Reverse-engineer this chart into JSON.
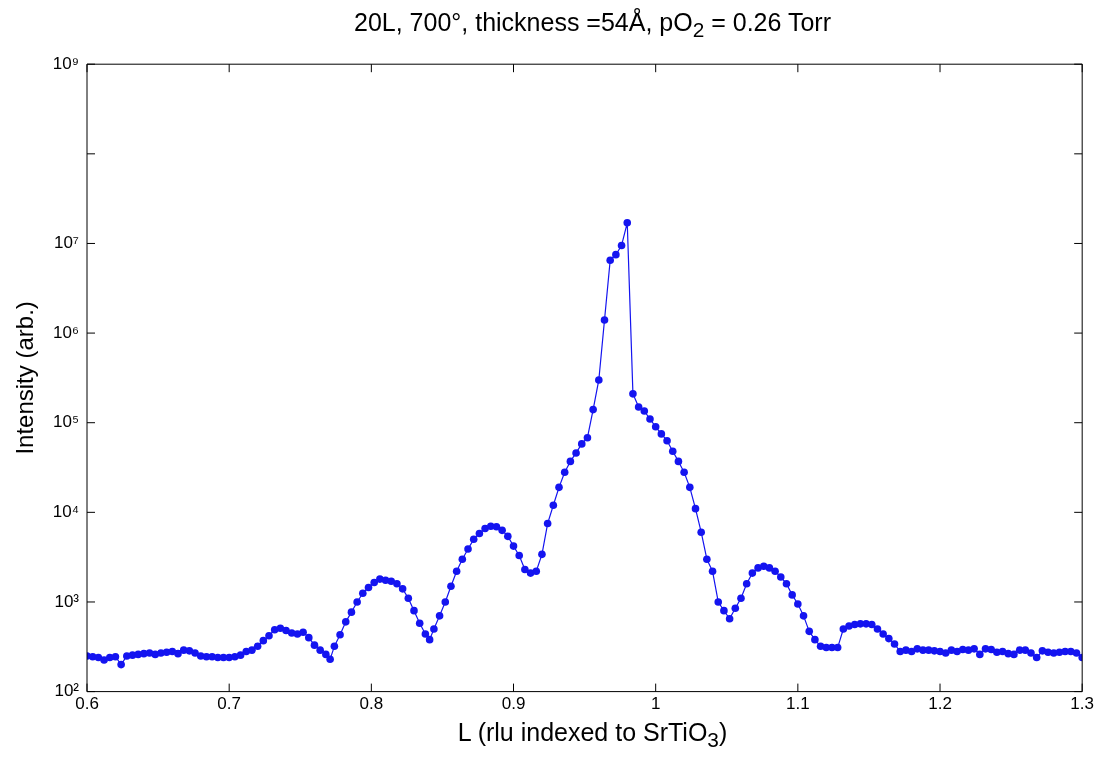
{
  "chart_data": {
    "type": "line",
    "title": "20L, 700°, thickness =54Å, pO$_{2}$ = 0.26 Torr",
    "xlabel": "L (rlu indexed to SrTiO$_{3}$)",
    "ylabel": "Intensity (arb.)",
    "x": [
      0.6,
      0.604,
      0.608,
      0.612,
      0.616,
      0.62,
      0.624,
      0.628,
      0.632,
      0.636,
      0.64,
      0.644,
      0.648,
      0.652,
      0.656,
      0.66,
      0.664,
      0.668,
      0.672,
      0.676,
      0.68,
      0.684,
      0.688,
      0.692,
      0.696,
      0.7,
      0.704,
      0.708,
      0.712,
      0.716,
      0.72,
      0.724,
      0.728,
      0.732,
      0.736,
      0.74,
      0.744,
      0.748,
      0.752,
      0.756,
      0.76,
      0.764,
      0.768,
      0.771,
      0.774,
      0.778,
      0.782,
      0.786,
      0.79,
      0.794,
      0.798,
      0.802,
      0.806,
      0.81,
      0.814,
      0.818,
      0.822,
      0.826,
      0.83,
      0.834,
      0.838,
      0.841,
      0.844,
      0.848,
      0.852,
      0.856,
      0.86,
      0.864,
      0.868,
      0.872,
      0.876,
      0.88,
      0.884,
      0.888,
      0.892,
      0.896,
      0.9,
      0.904,
      0.908,
      0.912,
      0.916,
      0.92,
      0.924,
      0.928,
      0.932,
      0.936,
      0.94,
      0.944,
      0.948,
      0.952,
      0.956,
      0.96,
      0.964,
      0.968,
      0.972,
      0.976,
      0.98,
      0.984,
      0.988,
      0.992,
      0.996,
      1.0,
      1.004,
      1.008,
      1.012,
      1.016,
      1.02,
      1.024,
      1.028,
      1.032,
      1.036,
      1.04,
      1.044,
      1.048,
      1.052,
      1.056,
      1.06,
      1.064,
      1.068,
      1.072,
      1.076,
      1.08,
      1.084,
      1.088,
      1.092,
      1.096,
      1.1,
      1.104,
      1.108,
      1.112,
      1.116,
      1.12,
      1.124,
      1.128,
      1.132,
      1.136,
      1.14,
      1.144,
      1.148,
      1.152,
      1.156,
      1.16,
      1.164,
      1.168,
      1.172,
      1.176,
      1.18,
      1.184,
      1.188,
      1.192,
      1.196,
      1.2,
      1.204,
      1.208,
      1.212,
      1.216,
      1.22,
      1.224,
      1.228,
      1.232,
      1.236,
      1.24,
      1.244,
      1.248,
      1.252,
      1.256,
      1.26,
      1.264,
      1.268,
      1.272,
      1.276,
      1.28,
      1.284,
      1.288,
      1.292,
      1.296,
      1.3
    ],
    "series": [
      {
        "color": "#1414f0",
        "values": [
          250,
          245,
          240,
          225,
          240,
          245,
          200,
          250,
          255,
          260,
          265,
          270,
          260,
          270,
          275,
          280,
          265,
          290,
          285,
          270,
          250,
          245,
          245,
          240,
          240,
          240,
          245,
          255,
          280,
          290,
          320,
          370,
          420,
          490,
          510,
          480,
          450,
          440,
          460,
          400,
          330,
          290,
          260,
          230,
          320,
          430,
          600,
          770,
          1000,
          1250,
          1450,
          1650,
          1800,
          1750,
          1700,
          1600,
          1400,
          1100,
          800,
          580,
          440,
          380,
          500,
          700,
          1000,
          1500,
          2200,
          3000,
          3900,
          5000,
          5800,
          6600,
          7000,
          6900,
          6300,
          5400,
          4200,
          3300,
          2300,
          2100,
          2200,
          3400,
          7500,
          12000,
          19000,
          28000,
          37000,
          46000,
          58000,
          68000,
          140000,
          300000,
          1400000,
          6500000,
          7500000,
          9500000,
          17000000,
          210000,
          150000,
          135000,
          110000,
          90000,
          75000,
          63000,
          48000,
          37000,
          28000,
          19000,
          11000,
          6000,
          3000,
          2200,
          1000,
          800,
          650,
          850,
          1100,
          1600,
          2100,
          2400,
          2500,
          2400,
          2200,
          1900,
          1600,
          1200,
          950,
          700,
          470,
          380,
          320,
          310,
          310,
          310,
          500,
          540,
          560,
          570,
          570,
          560,
          500,
          440,
          390,
          340,
          280,
          290,
          280,
          300,
          290,
          290,
          285,
          280,
          270,
          290,
          280,
          295,
          290,
          300,
          260,
          300,
          295,
          275,
          280,
          265,
          260,
          290,
          290,
          270,
          240,
          285,
          275,
          270,
          275,
          280,
          280,
          270,
          240
        ]
      }
    ],
    "xlim": [
      0.6,
      1.3
    ],
    "xticks": [
      0.6,
      0.7,
      0.8,
      0.9,
      1,
      1.1,
      1.2,
      1.3
    ],
    "ylim": [
      100,
      1000000000
    ],
    "yticks": [
      {
        "value": 100,
        "label": "10²"
      },
      {
        "value": 1000,
        "label": "10³"
      },
      {
        "value": 10000,
        "label": "10⁴"
      },
      {
        "value": 100000,
        "label": "10⁵"
      },
      {
        "value": 1000000,
        "label": "10⁶"
      },
      {
        "value": 10000000,
        "label": "10⁷"
      },
      {
        "value": 100000000,
        "label": null
      },
      {
        "value": 1000000000,
        "label": "10⁹"
      }
    ],
    "log": "y",
    "grid": false,
    "legend": false,
    "marker": "circle",
    "line_style": "solid"
  }
}
